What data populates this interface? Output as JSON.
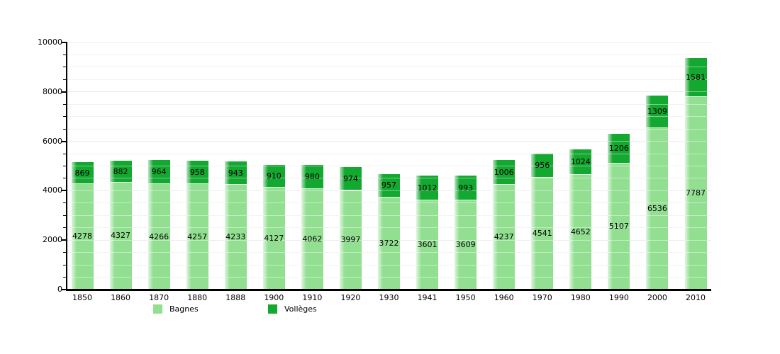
{
  "chart_data": {
    "type": "bar",
    "stacked": true,
    "categories": [
      "1850",
      "1860",
      "1870",
      "1880",
      "1888",
      "1900",
      "1910",
      "1920",
      "1930",
      "1941",
      "1950",
      "1960",
      "1970",
      "1980",
      "1990",
      "2000",
      "2010"
    ],
    "series": [
      {
        "name": "Bagnes",
        "color": "#92DF92",
        "values": [
          4278,
          4327,
          4266,
          4257,
          4233,
          4127,
          4062,
          3997,
          3722,
          3601,
          3609,
          4237,
          4541,
          4652,
          5107,
          6536,
          7787
        ]
      },
      {
        "name": "Vollèges",
        "color": "#13A82F",
        "values": [
          869,
          882,
          964,
          958,
          943,
          910,
          980,
          974,
          957,
          1012,
          993,
          1006,
          956,
          1024,
          1206,
          1309,
          1581
        ]
      }
    ],
    "ylim": [
      0,
      10000
    ],
    "y_major_step": 2000,
    "y_minor_step": 500,
    "y_tick_labels": [
      "0",
      "2000",
      "4000",
      "6000",
      "8000",
      "10000"
    ],
    "grid": true,
    "legend_position": "bottom",
    "colors": {
      "axis": "#000000",
      "grid_minor": "#E8E8E8",
      "grid_major": "#DCDCDC",
      "label_text": "#000000",
      "background": "#FFFFFF",
      "segment_separator": "rgba(255,255,255,0.9)"
    }
  }
}
